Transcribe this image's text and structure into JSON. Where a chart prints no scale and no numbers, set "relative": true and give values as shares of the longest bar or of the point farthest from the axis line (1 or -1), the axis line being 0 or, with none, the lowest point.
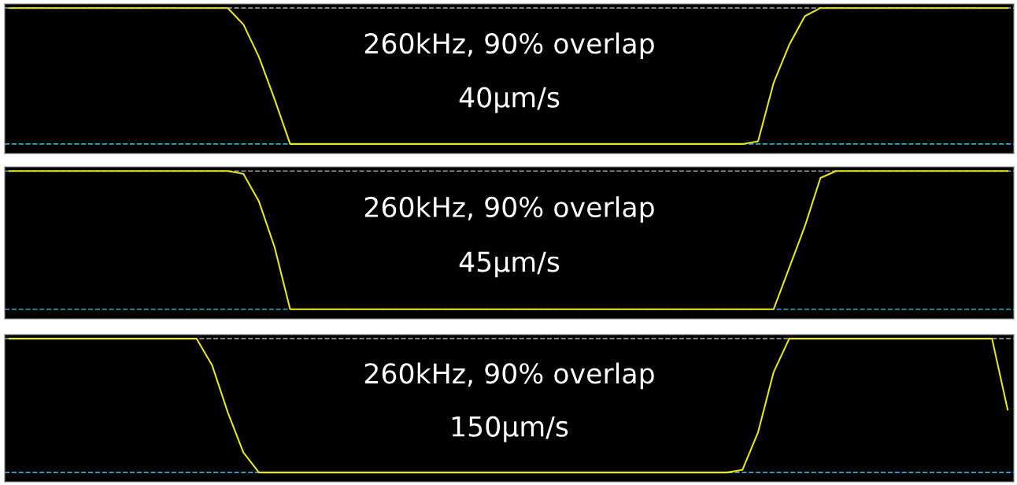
{
  "chart_data": [
    {
      "type": "line",
      "relative": true,
      "categories": [
        null,
        null,
        null,
        null,
        null,
        null,
        null,
        null,
        null,
        null,
        null,
        null,
        null,
        null,
        null,
        null,
        null,
        null,
        null,
        null,
        null,
        null,
        null,
        null,
        null,
        null,
        null,
        null,
        null,
        null,
        null,
        null,
        null,
        null,
        null,
        null,
        null,
        null,
        null,
        null,
        null,
        null,
        null,
        null,
        null,
        null,
        null,
        null,
        null,
        null,
        null,
        null,
        null,
        null,
        null,
        null,
        null,
        null,
        null,
        null,
        null,
        null,
        null,
        null,
        null
      ],
      "series": [
        {
          "color": "#e6e619",
          "values": [
            1,
            1,
            1,
            1,
            1,
            1,
            1,
            1,
            1,
            1,
            1,
            1,
            1,
            1,
            1,
            0.88,
            0.64,
            0.33,
            0,
            0,
            0,
            0,
            0,
            0,
            0,
            0,
            0,
            0,
            0,
            0,
            0,
            0,
            0,
            0,
            0,
            0,
            0,
            0,
            0,
            0,
            0,
            0,
            0,
            0,
            0,
            0,
            0,
            0,
            0.02,
            0.45,
            0.73,
            0.94,
            1,
            1,
            1,
            1,
            1,
            1,
            1,
            1,
            1,
            1,
            1,
            1,
            1
          ]
        }
      ],
      "ref_lines": [
        {
          "axis": "y",
          "value": 0,
          "color": "#33aacc",
          "line_style": "dashed"
        },
        {
          "axis": "y",
          "value": 1,
          "color": "#999999",
          "line_style": "dashed"
        }
      ],
      "annotations": [
        "260kHz, 90% overlap",
        "40μm/s"
      ]
    },
    {
      "type": "line",
      "relative": true,
      "categories": [
        null,
        null,
        null,
        null,
        null,
        null,
        null,
        null,
        null,
        null,
        null,
        null,
        null,
        null,
        null,
        null,
        null,
        null,
        null,
        null,
        null,
        null,
        null,
        null,
        null,
        null,
        null,
        null,
        null,
        null,
        null,
        null,
        null,
        null,
        null,
        null,
        null,
        null,
        null,
        null,
        null,
        null,
        null,
        null,
        null,
        null,
        null,
        null,
        null,
        null,
        null,
        null,
        null,
        null,
        null,
        null,
        null,
        null,
        null,
        null,
        null,
        null,
        null,
        null,
        null
      ],
      "series": [
        {
          "color": "#e6e619",
          "values": [
            1,
            1,
            1,
            1,
            1,
            1,
            1,
            1,
            1,
            1,
            1,
            1,
            1,
            1,
            1,
            0.98,
            0.78,
            0.45,
            0,
            0,
            0,
            0,
            0,
            0,
            0,
            0,
            0,
            0,
            0,
            0,
            0,
            0,
            0,
            0,
            0,
            0,
            0,
            0,
            0,
            0,
            0,
            0,
            0,
            0,
            0,
            0,
            0,
            0,
            0,
            0,
            0.3,
            0.6,
            0.95,
            1,
            1,
            1,
            1,
            1,
            1,
            1,
            1,
            1,
            1,
            1,
            1
          ]
        }
      ],
      "ref_lines": [
        {
          "axis": "y",
          "value": 0,
          "color": "#33aacc",
          "line_style": "dashed"
        },
        {
          "axis": "y",
          "value": 1,
          "color": "#999999",
          "line_style": "dashed"
        }
      ],
      "annotations": [
        "260kHz, 90% overlap",
        "45μm/s"
      ]
    },
    {
      "type": "line",
      "relative": true,
      "categories": [
        null,
        null,
        null,
        null,
        null,
        null,
        null,
        null,
        null,
        null,
        null,
        null,
        null,
        null,
        null,
        null,
        null,
        null,
        null,
        null,
        null,
        null,
        null,
        null,
        null,
        null,
        null,
        null,
        null,
        null,
        null,
        null,
        null,
        null,
        null,
        null,
        null,
        null,
        null,
        null,
        null,
        null,
        null,
        null,
        null,
        null,
        null,
        null,
        null,
        null,
        null,
        null,
        null,
        null,
        null,
        null,
        null,
        null,
        null,
        null,
        null,
        null,
        null,
        null,
        null
      ],
      "series": [
        {
          "color": "#e6e619",
          "values": [
            1,
            1,
            1,
            1,
            1,
            1,
            1,
            1,
            1,
            1,
            1,
            1,
            1,
            0.8,
            0.45,
            0.15,
            0,
            0,
            0,
            0,
            0,
            0,
            0,
            0,
            0,
            0,
            0,
            0,
            0,
            0,
            0,
            0,
            0,
            0,
            0,
            0,
            0,
            0,
            0,
            0,
            0,
            0,
            0,
            0,
            0,
            0,
            0,
            0.02,
            0.3,
            0.75,
            1,
            1,
            1,
            1,
            1,
            1,
            1,
            1,
            1,
            1,
            1,
            1,
            1,
            1,
            0.47
          ]
        }
      ],
      "ref_lines": [
        {
          "axis": "y",
          "value": 0,
          "color": "#33aacc",
          "line_style": "dashed"
        },
        {
          "axis": "y",
          "value": 1,
          "color": "#999999",
          "line_style": "dashed"
        }
      ],
      "annotations": [
        "260kHz, 90% overlap",
        "150μm/s"
      ]
    }
  ]
}
